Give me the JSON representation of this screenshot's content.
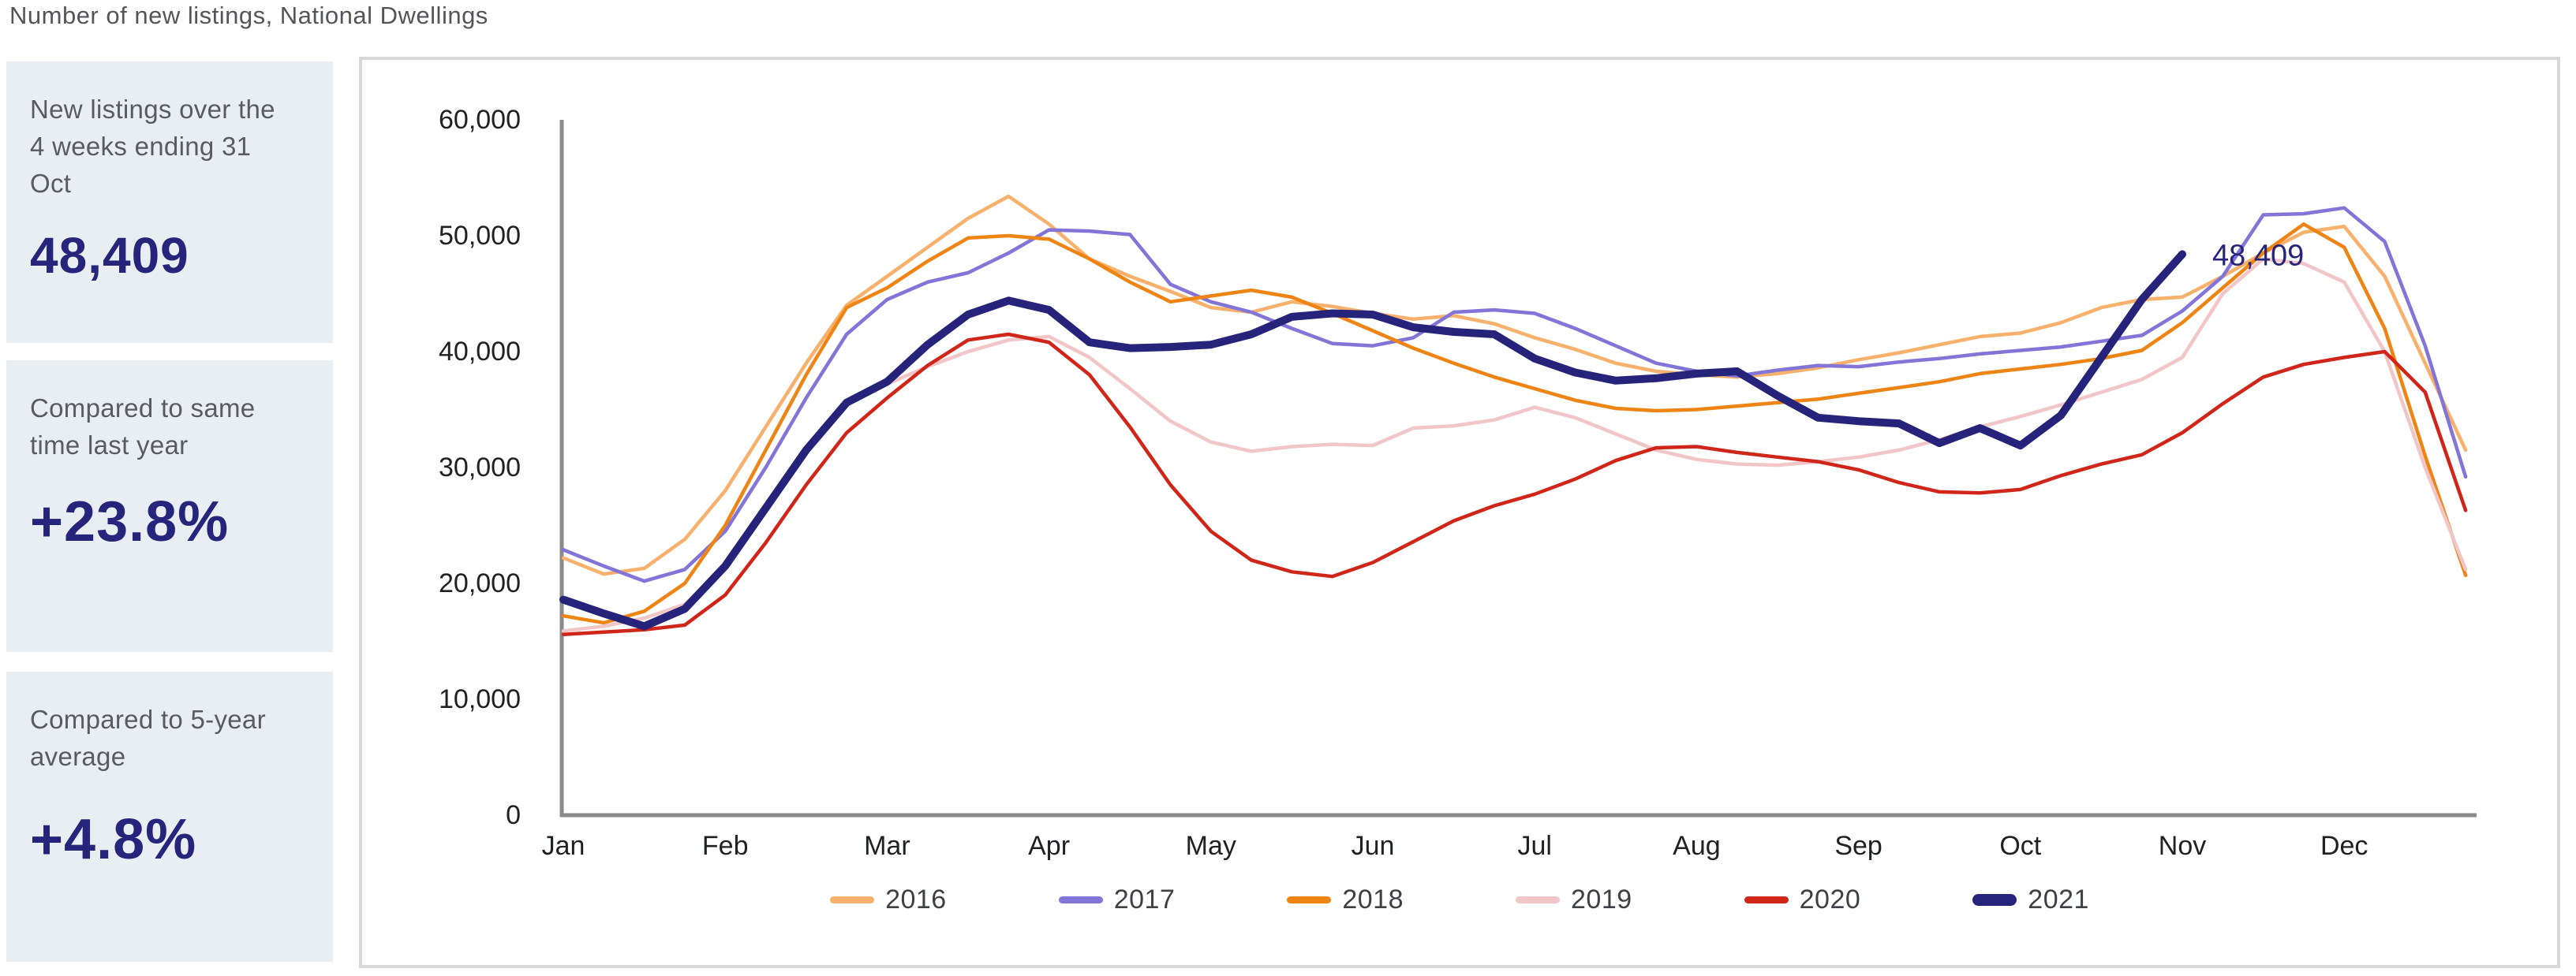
{
  "title": "Number of new listings, National Dwellings",
  "cards": [
    {
      "label": "New listings over the 4 weeks ending 31 Oct",
      "value": "48,409"
    },
    {
      "label": "Compared to same time last year",
      "value": "+23.8%"
    },
    {
      "label": "Compared to 5-year average",
      "value": "+4.8%"
    }
  ],
  "colors": {
    "card_background": "#e9eef3",
    "card_label_text": "#595b63",
    "card_value_text": "#26257b",
    "title_text": "#54555b",
    "axis_line": "#8a8a8a",
    "tick_text": "#202125",
    "annotation_text": "#26257b",
    "chart_border": "#d8d8d8"
  },
  "chart_data": {
    "type": "line",
    "title": "Number of new listings, National Dwellings",
    "xlabel": "",
    "ylabel": "",
    "x_categories": [
      "Jan",
      "Feb",
      "Mar",
      "Apr",
      "May",
      "Jun",
      "Jul",
      "Aug",
      "Sep",
      "Oct",
      "Nov",
      "Dec"
    ],
    "points_per_month": 4,
    "ylim": [
      0,
      60000
    ],
    "y_ticks": [
      0,
      10000,
      20000,
      30000,
      40000,
      50000,
      60000
    ],
    "y_tick_labels": [
      "0",
      "10,000",
      "20,000",
      "30,000",
      "40,000",
      "50,000",
      "60,000"
    ],
    "grid": false,
    "legend_position": "bottom",
    "annotation": {
      "text": "48,409",
      "series": "2021",
      "anchor": "last-point"
    },
    "series": [
      {
        "name": "2016",
        "color": "#f7b16c",
        "width": 4.5,
        "values": [
          22200,
          20800,
          21300,
          23800,
          28000,
          33500,
          39000,
          44000,
          46500,
          49000,
          51500,
          53400,
          51000,
          48000,
          46500,
          45200,
          43800,
          43400,
          44300,
          43900,
          43300,
          42800,
          43100,
          42400,
          41200,
          40200,
          39000,
          38300,
          38000,
          37800,
          38100,
          38600,
          39300,
          39900,
          40600,
          41300,
          41600,
          42500,
          43800,
          44500,
          44700,
          46500,
          48500,
          50300,
          50800,
          46500,
          39000,
          31500
        ]
      },
      {
        "name": "2017",
        "color": "#8374d8",
        "width": 4.5,
        "values": [
          22900,
          21500,
          20200,
          21200,
          24500,
          30000,
          36000,
          41500,
          44500,
          46000,
          46800,
          48500,
          50500,
          50400,
          50100,
          45800,
          44300,
          43400,
          42000,
          40700,
          40500,
          41200,
          43400,
          43600,
          43300,
          42000,
          40500,
          39000,
          38300,
          37900,
          38400,
          38800,
          38700,
          39100,
          39400,
          39800,
          40100,
          40400,
          40900,
          41400,
          43500,
          46500,
          51800,
          51900,
          52400,
          49500,
          40500,
          29200
        ]
      },
      {
        "name": "2018",
        "color": "#ee8414",
        "width": 4.5,
        "values": [
          17200,
          16600,
          17600,
          20000,
          25000,
          31500,
          38000,
          43800,
          45500,
          47800,
          49800,
          50000,
          49700,
          48000,
          46000,
          44300,
          44800,
          45300,
          44700,
          43300,
          41800,
          40300,
          39000,
          37800,
          36800,
          35800,
          35100,
          34900,
          35000,
          35300,
          35600,
          35900,
          36400,
          36900,
          37400,
          38100,
          38500,
          38900,
          39400,
          40100,
          42500,
          45500,
          48500,
          51000,
          49000,
          42000,
          31000,
          20700
        ]
      },
      {
        "name": "2019",
        "color": "#f2c5c7",
        "width": 4.5,
        "values": [
          15900,
          16300,
          17000,
          18200,
          21500,
          26500,
          31500,
          35500,
          37200,
          38700,
          40000,
          41000,
          41300,
          39500,
          36800,
          34000,
          32200,
          31400,
          31800,
          32000,
          31900,
          33400,
          33600,
          34100,
          35200,
          34300,
          32900,
          31500,
          30700,
          30300,
          30200,
          30500,
          30900,
          31500,
          32400,
          33500,
          34400,
          35400,
          36500,
          37600,
          39500,
          45000,
          48000,
          47600,
          46000,
          40000,
          30000,
          21200
        ]
      },
      {
        "name": "2020",
        "color": "#d0261a",
        "width": 4.5,
        "values": [
          15600,
          15800,
          16000,
          16400,
          19000,
          23500,
          28500,
          33000,
          36000,
          38800,
          41000,
          41500,
          40800,
          38000,
          33500,
          28500,
          24500,
          22000,
          21000,
          20600,
          21800,
          23600,
          25400,
          26700,
          27700,
          29000,
          30600,
          31700,
          31800,
          31300,
          30900,
          30500,
          29800,
          28700,
          27900,
          27800,
          28100,
          29300,
          30300,
          31100,
          33000,
          35500,
          37800,
          38900,
          39500,
          40000,
          36500,
          26300
        ]
      },
      {
        "name": "2021",
        "color": "#26247a",
        "width": 10,
        "values": [
          18600,
          17400,
          16300,
          17800,
          21500,
          26500,
          31500,
          35600,
          37400,
          40600,
          43200,
          44400,
          43600,
          40800,
          40300,
          40400,
          40600,
          41500,
          43000,
          43300,
          43200,
          42100,
          41700,
          41500,
          39400,
          38200,
          37500,
          37700,
          38100,
          38300,
          36200,
          34300,
          34000,
          33800,
          32100,
          33400,
          31900,
          34500,
          39500,
          44500,
          48409
        ]
      }
    ]
  }
}
